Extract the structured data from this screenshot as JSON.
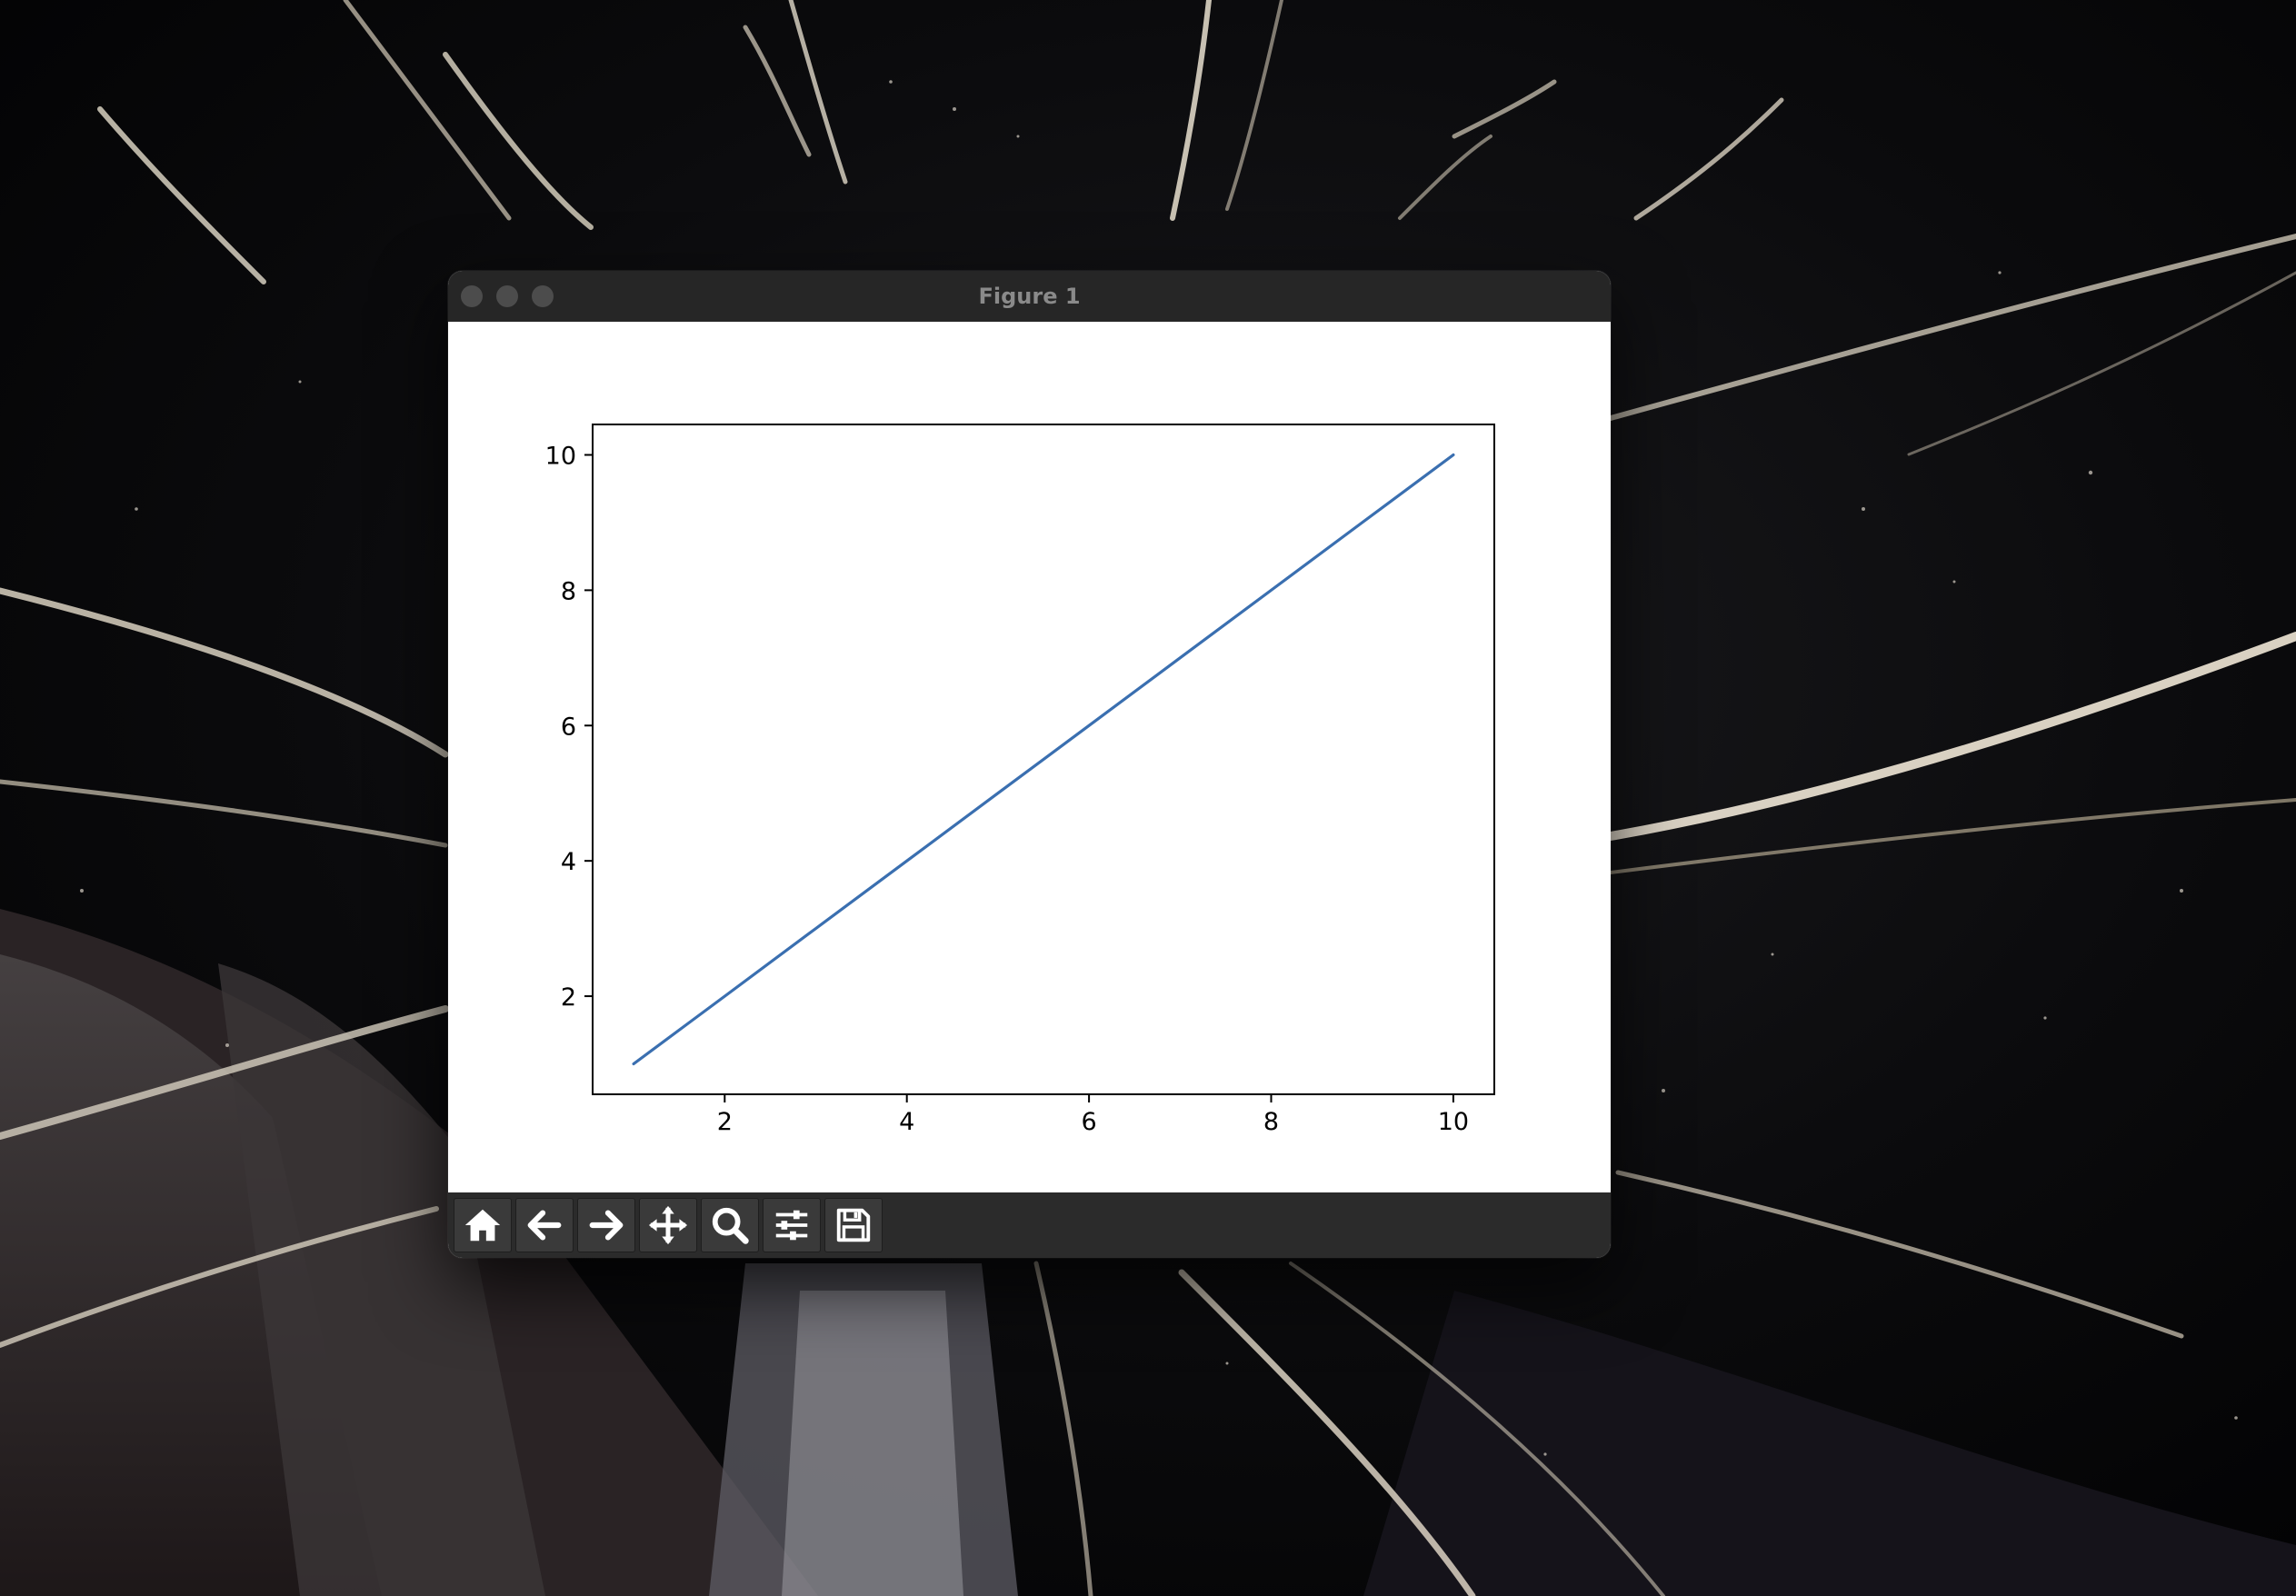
{
  "window": {
    "title": "Figure 1"
  },
  "toolbar": {
    "buttons": [
      {
        "icon": "home-icon"
      },
      {
        "icon": "back-arrow-icon"
      },
      {
        "icon": "forward-arrow-icon"
      },
      {
        "icon": "pan-icon"
      },
      {
        "icon": "zoom-icon"
      },
      {
        "icon": "configure-subplots-icon"
      },
      {
        "icon": "save-icon"
      }
    ]
  },
  "chart_data": {
    "type": "line",
    "title": "",
    "xlabel": "",
    "ylabel": "",
    "x": [
      1,
      2,
      3,
      4,
      5,
      6,
      7,
      8,
      9,
      10
    ],
    "series": [
      {
        "values": [
          1,
          2,
          3,
          4,
          5,
          6,
          7,
          8,
          9,
          10
        ],
        "color": "#3a6fb0"
      }
    ],
    "xlim": [
      0.55,
      10.45
    ],
    "ylim": [
      0.55,
      10.45
    ],
    "xticks": [
      2,
      4,
      6,
      8,
      10
    ],
    "yticks": [
      2,
      4,
      6,
      8,
      10
    ],
    "xtick_labels": [
      "2",
      "4",
      "6",
      "8",
      "10"
    ],
    "ytick_labels": [
      "2",
      "4",
      "6",
      "8",
      "10"
    ],
    "grid": false,
    "legend": "none"
  }
}
